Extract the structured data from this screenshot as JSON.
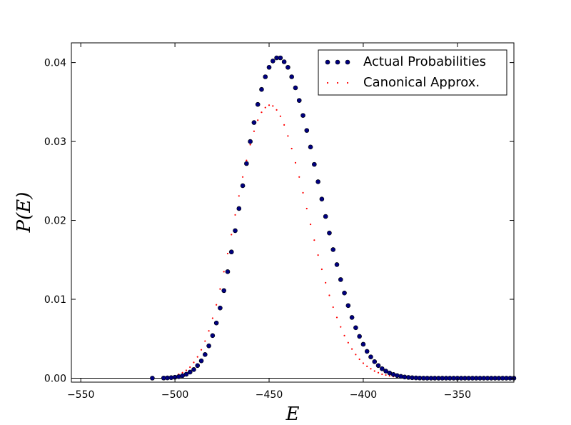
{
  "chart_data": {
    "type": "scatter",
    "title": "",
    "xlabel": "E",
    "ylabel": "P(E)",
    "xlim": [
      -555,
      -320
    ],
    "ylim": [
      -0.0005,
      0.0425
    ],
    "xticks": [
      -550,
      -500,
      -450,
      -400,
      -350
    ],
    "xtick_labels": [
      "−550",
      "−500",
      "−450",
      "−400",
      "−350"
    ],
    "yticks": [
      0.0,
      0.01,
      0.02,
      0.03,
      0.04
    ],
    "ytick_labels": [
      "0.00",
      "0.01",
      "0.02",
      "0.03",
      "0.04"
    ],
    "grid": false,
    "legend_position": "top-right",
    "baseline_y": 0,
    "series": [
      {
        "name": "Actual Probabilities",
        "marker": "circle",
        "color": "#000080",
        "x": [
          -512,
          -506,
          -504,
          -502,
          -500,
          -498,
          -496,
          -494,
          -492,
          -490,
          -488,
          -486,
          -484,
          -482,
          -480,
          -478,
          -476,
          -474,
          -472,
          -470,
          -468,
          -466,
          -464,
          -462,
          -460,
          -458,
          -456,
          -454,
          -452,
          -450,
          -448,
          -446,
          -444,
          -442,
          -440,
          -438,
          -436,
          -434,
          -432,
          -430,
          -428,
          -426,
          -424,
          -422,
          -420,
          -418,
          -416,
          -414,
          -412,
          -410,
          -408,
          -406,
          -404,
          -402,
          -400,
          -398,
          -396,
          -394,
          -392,
          -390,
          -388,
          -386,
          -384,
          -382,
          -380,
          -378,
          -376,
          -374,
          -372,
          -370,
          -368,
          -366,
          -364,
          -362,
          -360,
          -358,
          -356,
          -354,
          -352,
          -350,
          -348,
          -346,
          -344,
          -342,
          -340,
          -338,
          -336,
          -334,
          -332,
          -330,
          -328,
          -326,
          -324,
          -322,
          -320
        ],
        "y": [
          1e-05,
          2e-05,
          4e-05,
          7e-05,
          0.00012,
          0.0002,
          0.00032,
          0.0005,
          0.00077,
          0.0011,
          0.0016,
          0.0022,
          0.003,
          0.0041,
          0.0054,
          0.007,
          0.0089,
          0.0111,
          0.0135,
          0.016,
          0.0187,
          0.0215,
          0.0244,
          0.0272,
          0.03,
          0.0324,
          0.0347,
          0.0366,
          0.0382,
          0.0394,
          0.0402,
          0.0406,
          0.0406,
          0.0401,
          0.0394,
          0.0382,
          0.0368,
          0.0352,
          0.0333,
          0.0314,
          0.0293,
          0.0271,
          0.0249,
          0.0227,
          0.0205,
          0.0184,
          0.0163,
          0.0144,
          0.0125,
          0.0108,
          0.0092,
          0.0077,
          0.0064,
          0.0053,
          0.0043,
          0.0034,
          0.0027,
          0.0021,
          0.0016,
          0.0012,
          0.0009,
          0.00066,
          0.00047,
          0.00033,
          0.00023,
          0.00015,
          0.0001,
          6e-05,
          4e-05,
          2e-05,
          1e-05,
          0.0,
          0.0,
          0.0,
          0.0,
          0.0,
          0.0,
          0.0,
          0.0,
          0.0,
          0.0,
          0.0,
          0.0,
          0.0,
          0.0,
          0.0,
          0.0,
          0.0,
          0.0,
          0.0,
          0.0,
          0.0,
          0.0,
          0.0,
          0.0
        ]
      },
      {
        "name": "Canonical Approx.",
        "marker": "dot",
        "color": "#ff0000",
        "x": [
          -502,
          -500,
          -498,
          -496,
          -494,
          -492,
          -490,
          -488,
          -486,
          -484,
          -482,
          -480,
          -478,
          -476,
          -474,
          -472,
          -470,
          -468,
          -466,
          -464,
          -462,
          -460,
          -458,
          -456,
          -454,
          -452,
          -450,
          -448,
          -446,
          -444,
          -442,
          -440,
          -438,
          -436,
          -434,
          -432,
          -430,
          -428,
          -426,
          -424,
          -422,
          -420,
          -418,
          -416,
          -414,
          -412,
          -410,
          -408,
          -406,
          -404,
          -402,
          -400,
          -398,
          -396,
          -394,
          -392,
          -390,
          -388,
          -386,
          -384,
          -382,
          -380,
          -378,
          -376,
          -374,
          -372,
          -370,
          -368,
          -366,
          -364,
          -362,
          -360
        ],
        "y": [
          0.0002,
          0.0003,
          0.0005,
          0.0007,
          0.001,
          0.0014,
          0.002,
          0.0027,
          0.0036,
          0.0047,
          0.006,
          0.0076,
          0.0093,
          0.0113,
          0.0135,
          0.0158,
          0.0182,
          0.0207,
          0.0231,
          0.0255,
          0.0276,
          0.0296,
          0.0313,
          0.0327,
          0.0337,
          0.0343,
          0.0346,
          0.0345,
          0.034,
          0.0332,
          0.0321,
          0.0307,
          0.0291,
          0.0273,
          0.0255,
          0.0235,
          0.0215,
          0.0195,
          0.0175,
          0.0156,
          0.0138,
          0.0121,
          0.0105,
          0.009,
          0.0077,
          0.0065,
          0.0054,
          0.0045,
          0.0037,
          0.003,
          0.0024,
          0.0019,
          0.0015,
          0.0012,
          0.0009,
          0.0007,
          0.0005,
          0.0004,
          0.0003,
          0.0002,
          0.00015,
          0.0001,
          7e-05,
          5e-05,
          3e-05,
          2e-05,
          1e-05,
          1e-05,
          0.0,
          0.0,
          0.0,
          0.0
        ]
      }
    ]
  }
}
